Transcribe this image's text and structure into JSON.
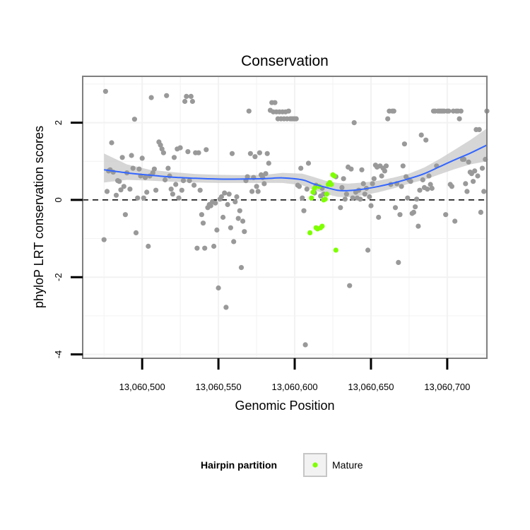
{
  "chart_data": {
    "type": "scatter",
    "title": "Conservation",
    "xlabel": "Genomic Position",
    "ylabel": "phyloP LRT conservation scores",
    "xlim": [
      13060461,
      13060726
    ],
    "ylim": [
      -4.1,
      3.2
    ],
    "x_ticks": [
      13060500,
      13060550,
      13060600,
      13060650,
      13060700
    ],
    "x_tick_labels": [
      "13,060,500",
      "13,060,550",
      "13,060,600",
      "13,060,650",
      "13,060,700"
    ],
    "y_ticks": [
      -4,
      -2,
      0,
      2
    ],
    "y_tick_labels": [
      "-4",
      "-2",
      "0",
      "2"
    ],
    "grid": true,
    "reference_line": {
      "y": 0,
      "style": "dashed"
    },
    "legend": {
      "title": "Hairpin partition",
      "entries": [
        "Mature"
      ],
      "placement": "bottom"
    },
    "colors": {
      "gray_points": "#999999",
      "mature_points": "#7FFF00",
      "smooth_line": "#3366FF",
      "ci_band": "#C8C8C8"
    },
    "series": [
      {
        "color": "gray",
        "points": [
          [
            13060475,
            -1.03
          ],
          [
            13060476,
            2.81
          ],
          [
            13060477,
            0.22
          ],
          [
            13060478,
            0.75
          ],
          [
            13060479,
            0.78
          ],
          [
            13060480,
            1.48
          ],
          [
            13060481,
            0.72
          ],
          [
            13060483,
            0.12
          ],
          [
            13060484,
            0.5
          ],
          [
            13060485,
            0.48
          ],
          [
            13060486,
            0.26
          ],
          [
            13060487,
            1.1
          ],
          [
            13060488,
            0.35
          ],
          [
            13060489,
            -0.38
          ],
          [
            13060490,
            0.7
          ],
          [
            13060492,
            0.28
          ],
          [
            13060493,
            1.15
          ],
          [
            13060494,
            0.82
          ],
          [
            13060495,
            2.09
          ],
          [
            13060496,
            -0.85
          ],
          [
            13060497,
            0.05
          ],
          [
            13060498,
            0.8
          ],
          [
            13060499,
            0.62
          ],
          [
            13060500,
            1.08
          ],
          [
            13060501,
            0.05
          ],
          [
            13060502,
            0.58
          ],
          [
            13060503,
            0.2
          ],
          [
            13060504,
            -1.2
          ],
          [
            13060505,
            0.62
          ],
          [
            13060506,
            2.65
          ],
          [
            13060507,
            0.7
          ],
          [
            13060508,
            0.8
          ],
          [
            13060509,
            0.25
          ],
          [
            13060511,
            1.5
          ],
          [
            13060512,
            1.42
          ],
          [
            13060513,
            1.32
          ],
          [
            13060514,
            1.22
          ],
          [
            13060515,
            0.52
          ],
          [
            13060516,
            2.7
          ],
          [
            13060517,
            0.82
          ],
          [
            13060518,
            0.62
          ],
          [
            13060519,
            0.28
          ],
          [
            13060520,
            0.15
          ],
          [
            13060521,
            1.1
          ],
          [
            13060522,
            0.4
          ],
          [
            13060523,
            1.32
          ],
          [
            13060524,
            0.05
          ],
          [
            13060525,
            1.35
          ],
          [
            13060526,
            0.25
          ],
          [
            13060527,
            0.5
          ],
          [
            13060528,
            2.55
          ],
          [
            13060529,
            2.68
          ],
          [
            13060530,
            1.25
          ],
          [
            13060531,
            0.5
          ],
          [
            13060532,
            2.68
          ],
          [
            13060533,
            2.55
          ],
          [
            13060534,
            0.38
          ],
          [
            13060535,
            1.22
          ],
          [
            13060536,
            -1.25
          ],
          [
            13060537,
            1.22
          ],
          [
            13060538,
            0.25
          ],
          [
            13060539,
            -0.38
          ],
          [
            13060540,
            -0.6
          ],
          [
            13060541,
            -1.25
          ],
          [
            13060542,
            1.3
          ],
          [
            13060543,
            -0.2
          ],
          [
            13060544,
            -0.12
          ],
          [
            13060545,
            -0.15
          ],
          [
            13060546,
            -0.05
          ],
          [
            13060547,
            -1.2
          ],
          [
            13060548,
            -0.08
          ],
          [
            13060549,
            -0.78
          ],
          [
            13060550,
            -2.28
          ],
          [
            13060551,
            0.02
          ],
          [
            13060552,
            0.08
          ],
          [
            13060553,
            -0.45
          ],
          [
            13060554,
            0.18
          ],
          [
            13060555,
            -2.78
          ],
          [
            13060556,
            -0.12
          ],
          [
            13060557,
            0.15
          ],
          [
            13060558,
            -0.72
          ],
          [
            13060559,
            1.2
          ],
          [
            13060560,
            -1.08
          ],
          [
            13060561,
            -0.05
          ],
          [
            13060562,
            0.08
          ],
          [
            13060563,
            -0.48
          ],
          [
            13060564,
            -0.28
          ],
          [
            13060565,
            -1.75
          ],
          [
            13060566,
            -0.55
          ],
          [
            13060567,
            -0.82
          ],
          [
            13060568,
            0.5
          ],
          [
            13060569,
            0.6
          ],
          [
            13060570,
            2.3
          ],
          [
            13060571,
            1.2
          ],
          [
            13060572,
            0.22
          ],
          [
            13060573,
            0.58
          ],
          [
            13060574,
            1.12
          ],
          [
            13060575,
            0.35
          ],
          [
            13060576,
            0.22
          ],
          [
            13060577,
            1.22
          ],
          [
            13060578,
            0.65
          ],
          [
            13060579,
            0.58
          ],
          [
            13060580,
            0.42
          ],
          [
            13060581,
            0.68
          ],
          [
            13060582,
            1.2
          ],
          [
            13060583,
            0.95
          ],
          [
            13060584,
            2.32
          ],
          [
            13060585,
            2.52
          ],
          [
            13060586,
            2.28
          ],
          [
            13060587,
            2.52
          ],
          [
            13060588,
            2.28
          ],
          [
            13060589,
            2.1
          ],
          [
            13060590,
            2.28
          ],
          [
            13060591,
            2.1
          ],
          [
            13060592,
            2.28
          ],
          [
            13060593,
            2.1
          ],
          [
            13060594,
            2.28
          ],
          [
            13060595,
            2.1
          ],
          [
            13060596,
            2.3
          ],
          [
            13060597,
            2.1
          ],
          [
            13060598,
            2.1
          ],
          [
            13060599,
            2.1
          ],
          [
            13060600,
            2.1
          ],
          [
            13060601,
            2.1
          ],
          [
            13060602,
            0.38
          ],
          [
            13060603,
            0.35
          ],
          [
            13060604,
            0.82
          ],
          [
            13060605,
            0.05
          ],
          [
            13060606,
            -0.28
          ],
          [
            13060607,
            -3.75
          ],
          [
            13060608,
            0.28
          ],
          [
            13060609,
            0.95
          ],
          [
            13060613,
            0.18
          ],
          [
            13060614,
            0.38
          ],
          [
            13060617,
            0.1
          ],
          [
            13060618,
            0.3
          ],
          [
            13060619,
            0.15
          ],
          [
            13060627,
            0.6
          ],
          [
            13060630,
            -0.2
          ],
          [
            13060631,
            0.32
          ],
          [
            13060632,
            0.55
          ],
          [
            13060633,
            0.02
          ],
          [
            13060634,
            0.15
          ],
          [
            13060635,
            0.85
          ],
          [
            13060636,
            -2.22
          ],
          [
            13060637,
            0.8
          ],
          [
            13060638,
            0.05
          ],
          [
            13060639,
            2.0
          ],
          [
            13060640,
            0.2
          ],
          [
            13060641,
            0.05
          ],
          [
            13060642,
            0.25
          ],
          [
            13060643,
            0.02
          ],
          [
            13060644,
            0.78
          ],
          [
            13060645,
            0.42
          ],
          [
            13060646,
            0.15
          ],
          [
            13060647,
            0.3
          ],
          [
            13060648,
            -1.3
          ],
          [
            13060649,
            0.08
          ],
          [
            13060650,
            -0.15
          ],
          [
            13060651,
            0.42
          ],
          [
            13060652,
            0.55
          ],
          [
            13060653,
            0.9
          ],
          [
            13060654,
            0.85
          ],
          [
            13060655,
            -0.45
          ],
          [
            13060656,
            0.88
          ],
          [
            13060657,
            0.62
          ],
          [
            13060658,
            0.82
          ],
          [
            13060659,
            0.75
          ],
          [
            13060660,
            0.88
          ],
          [
            13060661,
            2.1
          ],
          [
            13060662,
            2.3
          ],
          [
            13060663,
            0.4
          ],
          [
            13060664,
            2.3
          ],
          [
            13060665,
            2.3
          ],
          [
            13060666,
            -0.2
          ],
          [
            13060667,
            0.42
          ],
          [
            13060668,
            -1.62
          ],
          [
            13060669,
            -0.38
          ],
          [
            13060670,
            0.35
          ],
          [
            13060671,
            0.88
          ],
          [
            13060672,
            1.45
          ],
          [
            13060673,
            0.6
          ],
          [
            13060674,
            0.05
          ],
          [
            13060675,
            0.52
          ],
          [
            13060676,
            0.48
          ],
          [
            13060677,
            -0.35
          ],
          [
            13060678,
            -0.32
          ],
          [
            13060679,
            -0.18
          ],
          [
            13060680,
            0.02
          ],
          [
            13060681,
            -0.68
          ],
          [
            13060682,
            0.25
          ],
          [
            13060683,
            1.68
          ],
          [
            13060684,
            0.52
          ],
          [
            13060685,
            0.32
          ],
          [
            13060686,
            1.55
          ],
          [
            13060687,
            0.28
          ],
          [
            13060688,
            0.62
          ],
          [
            13060689,
            0.4
          ],
          [
            13060690,
            0.3
          ],
          [
            13060691,
            2.3
          ],
          [
            13060692,
            2.3
          ],
          [
            13060693,
            0.88
          ],
          [
            13060694,
            2.3
          ],
          [
            13060695,
            2.3
          ],
          [
            13060696,
            2.3
          ],
          [
            13060697,
            2.3
          ],
          [
            13060698,
            2.3
          ],
          [
            13060699,
            -0.38
          ],
          [
            13060700,
            2.3
          ],
          [
            13060701,
            2.3
          ],
          [
            13060702,
            0.4
          ],
          [
            13060703,
            0.35
          ],
          [
            13060704,
            2.3
          ],
          [
            13060705,
            -0.55
          ],
          [
            13060706,
            2.3
          ],
          [
            13060707,
            2.3
          ],
          [
            13060708,
            2.1
          ],
          [
            13060709,
            2.3
          ],
          [
            13060710,
            1.05
          ],
          [
            13060711,
            1.05
          ],
          [
            13060712,
            0.42
          ],
          [
            13060713,
            0.22
          ],
          [
            13060714,
            0.98
          ],
          [
            13060715,
            0.72
          ],
          [
            13060716,
            0.68
          ],
          [
            13060717,
            0.48
          ],
          [
            13060718,
            0.75
          ],
          [
            13060719,
            1.82
          ],
          [
            13060720,
            0.62
          ],
          [
            13060721,
            1.82
          ],
          [
            13060722,
            -0.32
          ],
          [
            13060723,
            0.82
          ],
          [
            13060724,
            0.22
          ],
          [
            13060725,
            1.05
          ],
          [
            13060726,
            2.3
          ]
        ]
      },
      {
        "name": "Mature",
        "color": "green",
        "points": [
          [
            13060610,
            -0.85
          ],
          [
            13060611,
            0.05
          ],
          [
            13060612,
            0.2
          ],
          [
            13060613,
            0.3
          ],
          [
            13060614,
            -0.72
          ],
          [
            13060615,
            -0.75
          ],
          [
            13060616,
            0.35
          ],
          [
            13060617,
            -0.72
          ],
          [
            13060618,
            -0.68
          ],
          [
            13060619,
            0.0
          ],
          [
            13060620,
            0.02
          ],
          [
            13060621,
            0.15
          ],
          [
            13060622,
            0.4
          ],
          [
            13060623,
            0.45
          ],
          [
            13060624,
            0.4
          ],
          [
            13060625,
            0.65
          ],
          [
            13060626,
            0.62
          ],
          [
            13060627,
            -1.3
          ]
        ]
      }
    ],
    "smooth": {
      "x": [
        13060475,
        13060490,
        13060505,
        13060520,
        13060535,
        13060550,
        13060565,
        13060580,
        13060592,
        13060605,
        13060612,
        13060620,
        13060628,
        13060635,
        13060645,
        13060655,
        13060665,
        13060675,
        13060685,
        13060695,
        13060705,
        13060715,
        13060726
      ],
      "y": [
        0.78,
        0.7,
        0.64,
        0.59,
        0.56,
        0.54,
        0.54,
        0.55,
        0.57,
        0.52,
        0.42,
        0.33,
        0.25,
        0.24,
        0.28,
        0.35,
        0.44,
        0.55,
        0.68,
        0.86,
        1.04,
        1.21,
        1.42
      ],
      "lower": [
        0.45,
        0.52,
        0.5,
        0.47,
        0.45,
        0.44,
        0.44,
        0.44,
        0.44,
        0.38,
        0.26,
        0.16,
        0.08,
        0.07,
        0.12,
        0.2,
        0.3,
        0.42,
        0.52,
        0.66,
        0.8,
        0.92,
        1.0
      ],
      "upper": [
        1.2,
        0.92,
        0.78,
        0.72,
        0.67,
        0.65,
        0.64,
        0.65,
        0.7,
        0.68,
        0.6,
        0.5,
        0.44,
        0.42,
        0.45,
        0.5,
        0.58,
        0.68,
        0.84,
        1.06,
        1.3,
        1.55,
        1.85
      ]
    }
  }
}
